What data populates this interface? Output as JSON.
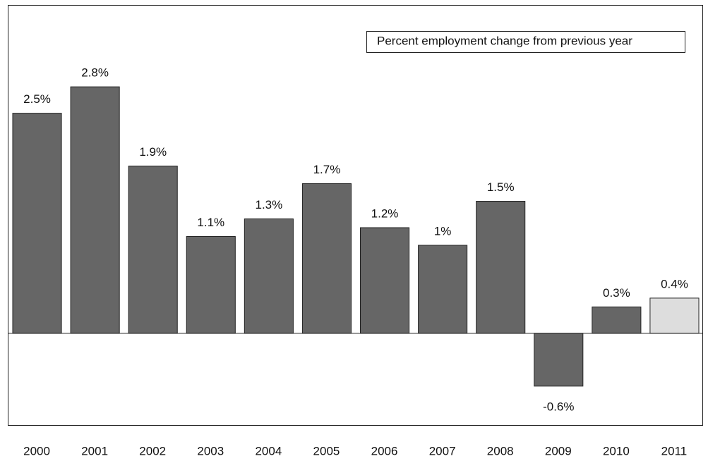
{
  "chart_data": {
    "type": "bar",
    "categories": [
      "2000",
      "2001",
      "2002",
      "2003",
      "2004",
      "2005",
      "2006",
      "2007",
      "2008",
      "2009",
      "2010",
      "2011"
    ],
    "series": [
      {
        "name": "Percent employment change from previous year",
        "color": "#666666",
        "colors": [
          "#666666",
          "#666666",
          "#666666",
          "#666666",
          "#666666",
          "#666666",
          "#666666",
          "#666666",
          "#666666",
          "#666666",
          "#666666",
          "#dddddd"
        ],
        "values": [
          2.5,
          2.8,
          1.9,
          1.1,
          1.3,
          1.7,
          1.2,
          1,
          1.5,
          -0.6,
          0.3,
          0.4
        ],
        "value_labels": [
          "2.5%",
          "2.8%",
          "1.9%",
          "1.1%",
          "1.3%",
          "1.7%",
          "1.2%",
          "1%",
          "1.5%",
          "-0.6%",
          "0.3%",
          "0.4%"
        ]
      }
    ],
    "ylim": [
      -1.05,
      3.73
    ],
    "legend": "upper right"
  }
}
